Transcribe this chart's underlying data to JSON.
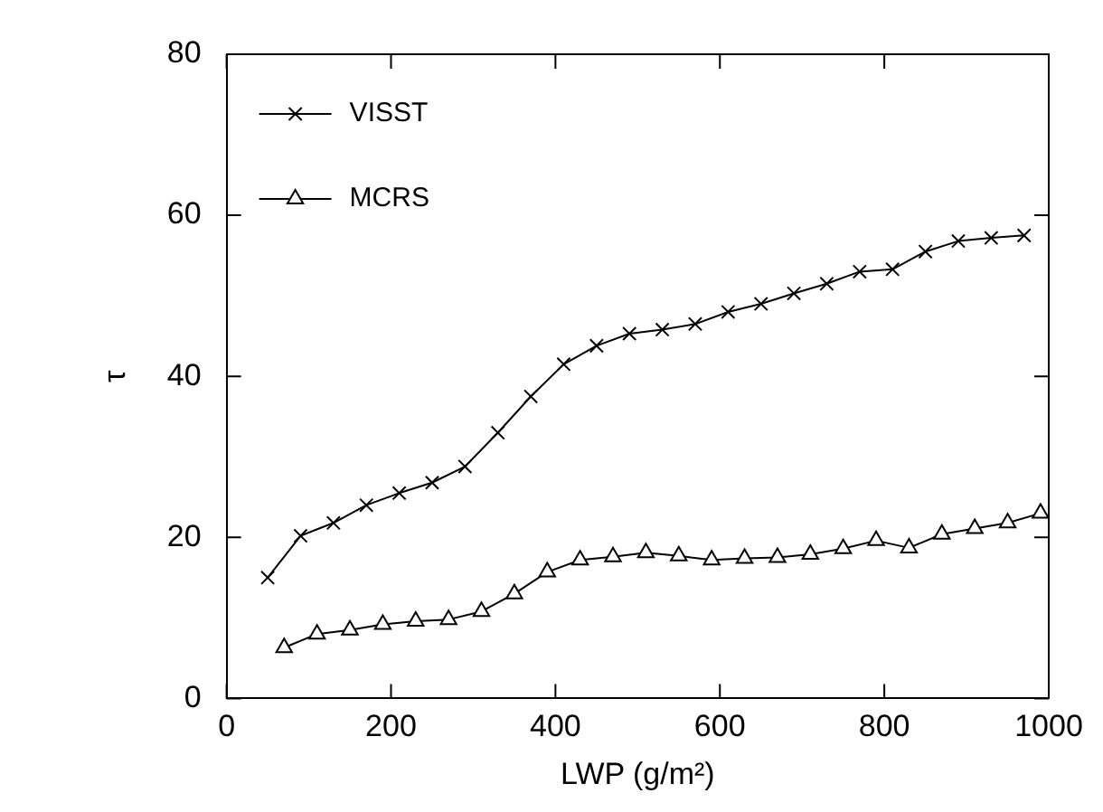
{
  "chart_data": {
    "type": "line",
    "xlabel": "LWP (g/m²)",
    "ylabel": "τ",
    "xlim": [
      0,
      1000
    ],
    "xticks": [
      0,
      200,
      400,
      600,
      800,
      1000
    ],
    "ylim": [
      0,
      80
    ],
    "yticks": [
      0,
      20,
      40,
      60,
      80
    ],
    "grid": false,
    "legend": "top left",
    "line_style": "solid",
    "series": [
      {
        "name": "VISST",
        "color": "#000000",
        "marker": "cross",
        "x": [
          50,
          90,
          130,
          170,
          210,
          250,
          290,
          330,
          370,
          410,
          450,
          490,
          530,
          570,
          610,
          650,
          690,
          730,
          770,
          810,
          850,
          890,
          930,
          970
        ],
        "values": [
          15,
          20.2,
          21.8,
          24,
          25.5,
          26.8,
          28.8,
          33,
          37.5,
          41.5,
          43.8,
          45.3,
          45.8,
          46.5,
          48,
          49,
          50.3,
          51.5,
          53,
          53.3,
          55.5,
          56.8,
          57.2,
          57.5
        ]
      },
      {
        "name": "MCRS",
        "color": "#000000",
        "marker": "triangle",
        "x": [
          70,
          110,
          150,
          190,
          230,
          270,
          310,
          350,
          390,
          430,
          470,
          510,
          550,
          590,
          630,
          670,
          710,
          750,
          790,
          830,
          870,
          910,
          950,
          990
        ],
        "values": [
          6.3,
          8,
          8.5,
          9.2,
          9.6,
          9.8,
          10.8,
          13,
          15.7,
          17.2,
          17.6,
          18.1,
          17.7,
          17.2,
          17.4,
          17.5,
          17.9,
          18.6,
          19.6,
          18.7,
          20.4,
          21.1,
          21.8,
          23
        ]
      }
    ]
  }
}
